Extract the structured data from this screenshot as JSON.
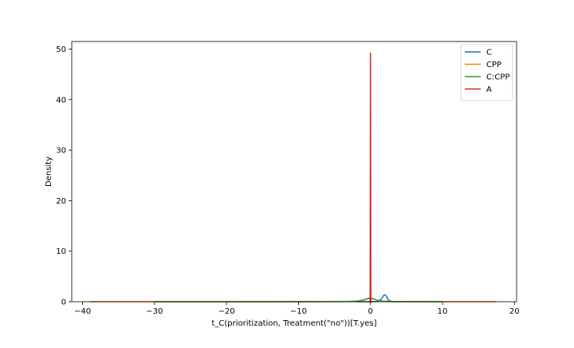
{
  "chart_data": {
    "type": "line",
    "title": "",
    "xlabel": "t_C(prioritization, Treatment(\"no\"))[T.yes]",
    "ylabel": "Density",
    "xlim": [
      -41.5,
      20.3
    ],
    "ylim": [
      0,
      51.5
    ],
    "xticks": [
      -40,
      -30,
      -20,
      -10,
      0,
      10,
      20
    ],
    "yticks": [
      0,
      10,
      20,
      30,
      40,
      50
    ],
    "grid": false,
    "legend_position": "top-right",
    "series": [
      {
        "name": "C",
        "color": "#1f77b4",
        "x": [
          -2,
          0,
          1.0,
          1.5,
          1.8,
          2.0,
          2.2,
          2.5,
          3.0,
          4
        ],
        "y": [
          0.0,
          0.0,
          0.05,
          0.5,
          1.2,
          1.4,
          1.1,
          0.3,
          0.02,
          0.0
        ]
      },
      {
        "name": "CPP",
        "color": "#ff7f0e",
        "x": [
          -39,
          -30,
          -20,
          -10,
          -3,
          -1.5,
          -0.8,
          -0.3,
          0.0,
          0.3,
          0.8,
          1.5,
          3,
          10,
          17.5
        ],
        "y": [
          0.0,
          0.0,
          0.0,
          0.01,
          0.03,
          0.15,
          0.45,
          0.7,
          0.75,
          0.65,
          0.35,
          0.1,
          0.03,
          0.0,
          0.0
        ]
      },
      {
        "name": "C:CPP",
        "color": "#2ca02c",
        "x": [
          -30,
          -20,
          -10,
          -4,
          -2,
          -1,
          -0.5,
          0.0,
          0.5,
          1.0,
          2,
          4,
          10
        ],
        "y": [
          0.0,
          0.0,
          0.0,
          0.02,
          0.1,
          0.3,
          0.55,
          0.65,
          0.5,
          0.25,
          0.05,
          0.01,
          0.0
        ]
      },
      {
        "name": "A",
        "color": "#d62728",
        "x": [
          -0.3,
          -0.05,
          -0.02,
          0.0,
          0.02,
          0.05,
          0.3
        ],
        "y": [
          0.0,
          0.0,
          30.0,
          49.2,
          30.0,
          0.0,
          0.0
        ]
      }
    ]
  }
}
